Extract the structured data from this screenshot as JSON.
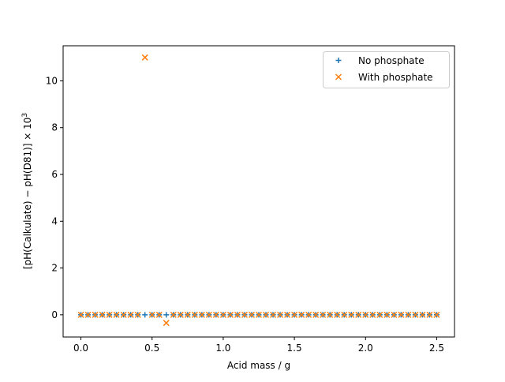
{
  "chart_data": {
    "type": "scatter",
    "title": "",
    "xlabel": "Acid mass / g",
    "ylabel_main": "[pH(Calkulate) − pH(D81)] × 10",
    "ylabel_exponent": "3",
    "xlim": [
      -0.125,
      2.625
    ],
    "ylim": [
      -0.95,
      11.5
    ],
    "xticks": [
      0.0,
      0.5,
      1.0,
      1.5,
      2.0,
      2.5
    ],
    "xtick_labels": [
      "0.0",
      "0.5",
      "1.0",
      "1.5",
      "2.0",
      "2.5"
    ],
    "yticks": [
      0,
      2,
      4,
      6,
      8,
      10
    ],
    "ytick_labels": [
      "0",
      "2",
      "4",
      "6",
      "8",
      "10"
    ],
    "grid": false,
    "legend_position": "top-right",
    "series": [
      {
        "name": "No phosphate",
        "marker": "plus",
        "color": "#1f77b4",
        "points": [
          [
            0.0,
            0
          ],
          [
            0.05,
            0
          ],
          [
            0.1,
            0
          ],
          [
            0.15,
            0
          ],
          [
            0.2,
            0
          ],
          [
            0.25,
            0
          ],
          [
            0.3,
            0
          ],
          [
            0.35,
            0
          ],
          [
            0.4,
            0
          ],
          [
            0.45,
            0
          ],
          [
            0.5,
            0
          ],
          [
            0.55,
            0
          ],
          [
            0.6,
            0
          ],
          [
            0.65,
            0
          ],
          [
            0.7,
            0
          ],
          [
            0.75,
            0
          ],
          [
            0.8,
            0
          ],
          [
            0.85,
            0
          ],
          [
            0.9,
            0
          ],
          [
            0.95,
            0
          ],
          [
            1.0,
            0
          ],
          [
            1.05,
            0
          ],
          [
            1.1,
            0
          ],
          [
            1.15,
            0
          ],
          [
            1.2,
            0
          ],
          [
            1.25,
            0
          ],
          [
            1.3,
            0
          ],
          [
            1.35,
            0
          ],
          [
            1.4,
            0
          ],
          [
            1.45,
            0
          ],
          [
            1.5,
            0
          ],
          [
            1.55,
            0
          ],
          [
            1.6,
            0
          ],
          [
            1.65,
            0
          ],
          [
            1.7,
            0
          ],
          [
            1.75,
            0
          ],
          [
            1.8,
            0
          ],
          [
            1.85,
            0
          ],
          [
            1.9,
            0
          ],
          [
            1.95,
            0
          ],
          [
            2.0,
            0
          ],
          [
            2.05,
            0
          ],
          [
            2.1,
            0
          ],
          [
            2.15,
            0
          ],
          [
            2.2,
            0
          ],
          [
            2.25,
            0
          ],
          [
            2.3,
            0
          ],
          [
            2.35,
            0
          ],
          [
            2.4,
            0
          ],
          [
            2.45,
            0
          ],
          [
            2.5,
            0
          ]
        ]
      },
      {
        "name": "With phosphate",
        "marker": "x",
        "color": "#ff7f0e",
        "points": [
          [
            0.0,
            0
          ],
          [
            0.05,
            0
          ],
          [
            0.1,
            0
          ],
          [
            0.15,
            0
          ],
          [
            0.2,
            0
          ],
          [
            0.25,
            0
          ],
          [
            0.3,
            0
          ],
          [
            0.35,
            0
          ],
          [
            0.4,
            0
          ],
          [
            0.45,
            11.0
          ],
          [
            0.5,
            0
          ],
          [
            0.55,
            0
          ],
          [
            0.6,
            -0.35
          ],
          [
            0.65,
            0
          ],
          [
            0.7,
            0
          ],
          [
            0.75,
            0
          ],
          [
            0.8,
            0
          ],
          [
            0.85,
            0
          ],
          [
            0.9,
            0
          ],
          [
            0.95,
            0
          ],
          [
            1.0,
            0
          ],
          [
            1.05,
            0
          ],
          [
            1.1,
            0
          ],
          [
            1.15,
            0
          ],
          [
            1.2,
            0
          ],
          [
            1.25,
            0
          ],
          [
            1.3,
            0
          ],
          [
            1.35,
            0
          ],
          [
            1.4,
            0
          ],
          [
            1.45,
            0
          ],
          [
            1.5,
            0
          ],
          [
            1.55,
            0
          ],
          [
            1.6,
            0
          ],
          [
            1.65,
            0
          ],
          [
            1.7,
            0
          ],
          [
            1.75,
            0
          ],
          [
            1.8,
            0
          ],
          [
            1.85,
            0
          ],
          [
            1.9,
            0
          ],
          [
            1.95,
            0
          ],
          [
            2.0,
            0
          ],
          [
            2.05,
            0
          ],
          [
            2.1,
            0
          ],
          [
            2.15,
            0
          ],
          [
            2.2,
            0
          ],
          [
            2.25,
            0
          ],
          [
            2.3,
            0
          ],
          [
            2.35,
            0
          ],
          [
            2.4,
            0
          ],
          [
            2.45,
            0
          ],
          [
            2.5,
            0
          ]
        ]
      }
    ]
  }
}
